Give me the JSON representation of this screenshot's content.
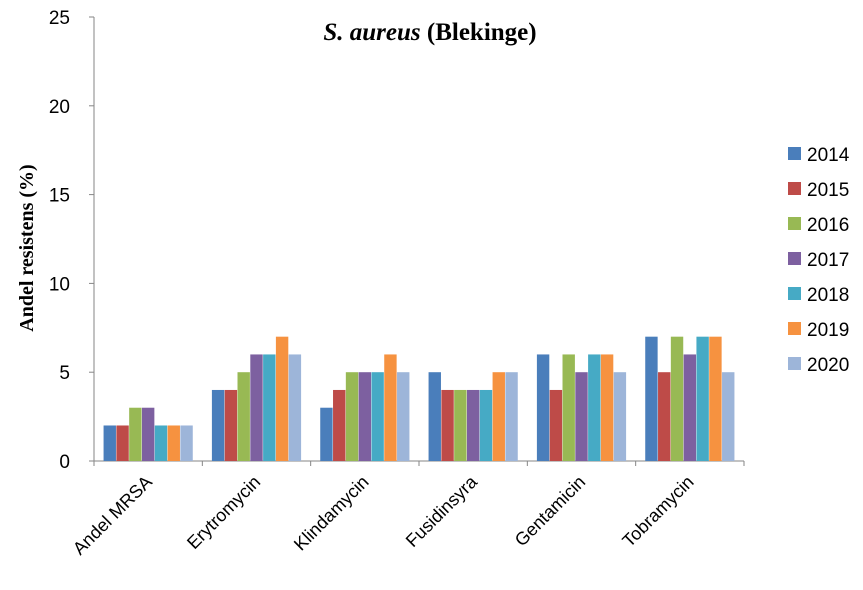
{
  "chart_data": {
    "type": "bar",
    "title": {
      "italic": "S. aureus",
      "normal": " (Blekinge)"
    },
    "ylabel": "Andel resistens (%)",
    "xlabel": "",
    "ylim": [
      0,
      25
    ],
    "yticks": [
      0,
      5,
      10,
      15,
      20,
      25
    ],
    "grid": false,
    "legend_position": "right",
    "categories": [
      "Andel MRSA",
      "Erytromycin",
      "Klindamycin",
      "Fusidinsyra",
      "Gentamicin",
      "Tobramycin"
    ],
    "series": [
      {
        "name": "2014",
        "color": "#4a7ebb",
        "values": [
          2,
          4,
          3,
          5,
          6,
          7
        ]
      },
      {
        "name": "2015",
        "color": "#be4b48",
        "values": [
          2,
          4,
          4,
          4,
          4,
          5
        ]
      },
      {
        "name": "2016",
        "color": "#98b954",
        "values": [
          3,
          5,
          5,
          4,
          6,
          7
        ]
      },
      {
        "name": "2017",
        "color": "#7d60a0",
        "values": [
          3,
          6,
          5,
          4,
          5,
          6
        ]
      },
      {
        "name": "2018",
        "color": "#46aac5",
        "values": [
          2,
          6,
          5,
          4,
          6,
          7
        ]
      },
      {
        "name": "2019",
        "color": "#f69240",
        "values": [
          2,
          7,
          6,
          5,
          6,
          7
        ]
      },
      {
        "name": "2020",
        "color": "#9db5d9",
        "values": [
          2,
          6,
          5,
          5,
          5,
          5
        ]
      }
    ]
  }
}
